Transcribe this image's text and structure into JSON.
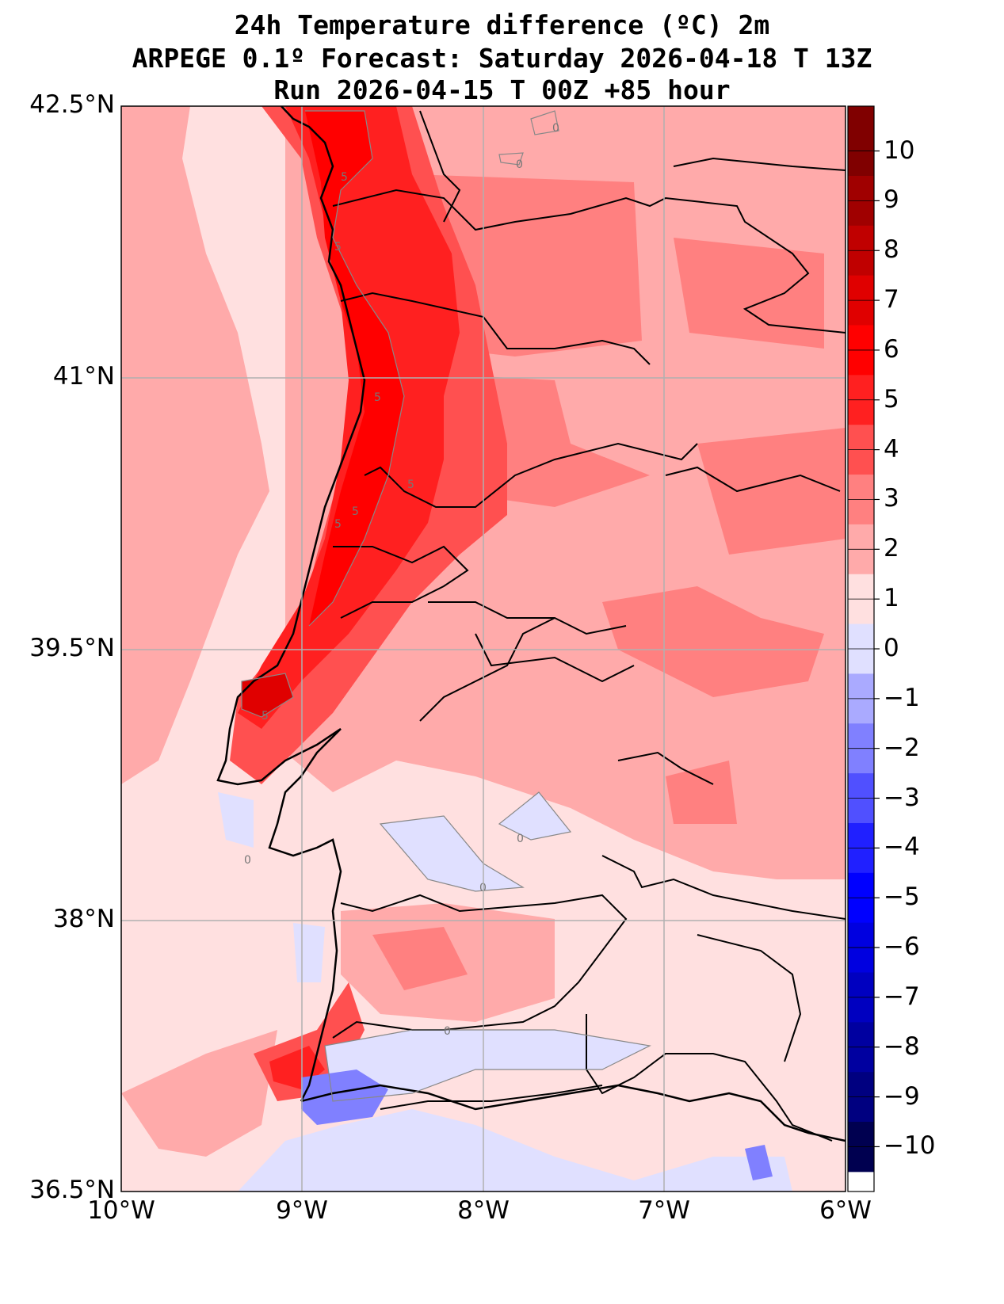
{
  "title": {
    "line1": "24h Temperature difference (ºC) 2m",
    "line2": "ARPEGE 0.1º Forecast: Saturday 2026-04-18 T 13Z",
    "line3": "Run 2026-04-15 T 00Z +85 hour"
  },
  "axes": {
    "lat_ticks": [
      "42.5°N",
      "41°N",
      "39.5°N",
      "38°N",
      "36.5°N"
    ],
    "lon_ticks": [
      "10°W",
      "9°W",
      "8°W",
      "7°W",
      "6°W"
    ]
  },
  "colorbar": {
    "labels": [
      "10",
      "9",
      "8",
      "7",
      "6",
      "5",
      "4",
      "3",
      "2",
      "1",
      "0",
      "−1",
      "−2",
      "−3",
      "−4",
      "−5",
      "−6",
      "−7",
      "−8",
      "−9",
      "−10"
    ],
    "colors": [
      "#800000",
      "#a00000",
      "#c00000",
      "#e00000",
      "#ff0000",
      "#ff2020",
      "#ff5050",
      "#ff8080",
      "#ffaaaa",
      "#ffe0e0",
      "#e0e0ff",
      "#aaaaff",
      "#8080ff",
      "#5050ff",
      "#2020ff",
      "#0000ff",
      "#0000e0",
      "#0000c0",
      "#0000a0",
      "#000080",
      "#000050"
    ]
  },
  "contour_labels": [
    "5",
    "5",
    "5",
    "5",
    "5",
    "5",
    "5",
    "0",
    "0",
    "0",
    "0",
    "0",
    "0"
  ]
}
